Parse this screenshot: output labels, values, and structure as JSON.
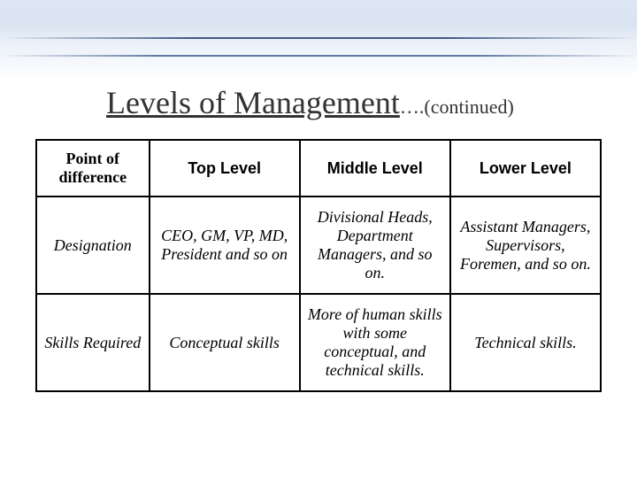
{
  "slide": {
    "title_main": "Levels of Management",
    "title_cont": "….(continued)",
    "background_color": "#ffffff",
    "wave_color": "#b8c8e0",
    "wave_line_color": "#405a82"
  },
  "table": {
    "type": "table",
    "border_color": "#000000",
    "border_width": 2,
    "header_font": "Arial",
    "header_fontsize": 18,
    "header_weight": "bold",
    "rowlabel_font": "Georgia",
    "rowlabel_fontsize": 18,
    "rowlabel_style": "italic",
    "cell_font": "Georgia",
    "cell_fontsize": 18,
    "cell_style": "italic",
    "columns": [
      {
        "label": "Point of difference",
        "width": "20%",
        "font": "Georgia",
        "weight": "bold"
      },
      {
        "label": "Top Level",
        "width": "26.6%"
      },
      {
        "label": "Middle Level",
        "width": "26.6%"
      },
      {
        "label": "Lower Level",
        "width": "26.6%"
      }
    ],
    "rows": [
      {
        "label": "Designation",
        "cells": [
          "CEO, GM, VP, MD, President and so on",
          "Divisional Heads, Department Managers, and so on.",
          "Assistant Managers, Supervisors, Foremen, and so on."
        ]
      },
      {
        "label": "Skills Required",
        "cells": [
          "Conceptual skills",
          "More of human skills with some conceptual, and technical skills.",
          "Technical skills."
        ]
      }
    ]
  }
}
